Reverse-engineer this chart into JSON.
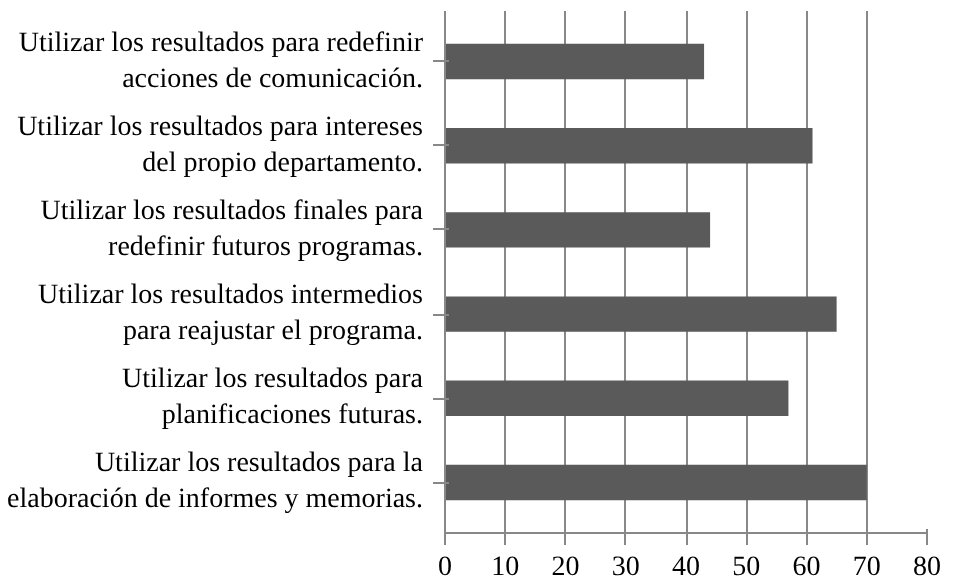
{
  "chart_data": {
    "type": "bar",
    "orientation": "horizontal",
    "categories": [
      "Utilizar los resultados para redefinir\nacciones de comunicación.",
      "Utilizar los resultados para intereses\ndel propio departamento.",
      "Utilizar los resultados finales para\nredefinir futuros programas.",
      "Utilizar los resultados intermedios\npara reajustar el programa.",
      "Utilizar los resultados para\nplanificaciones futuras.",
      "Utilizar los resultados para la\nelaboración de informes y memorias."
    ],
    "values": [
      43,
      61,
      44,
      65,
      57,
      70
    ],
    "color": "#5a5a5a",
    "xlim": [
      0,
      80
    ],
    "xticks": [
      0,
      10,
      20,
      30,
      40,
      50,
      60,
      70,
      80
    ],
    "grid": "x"
  }
}
